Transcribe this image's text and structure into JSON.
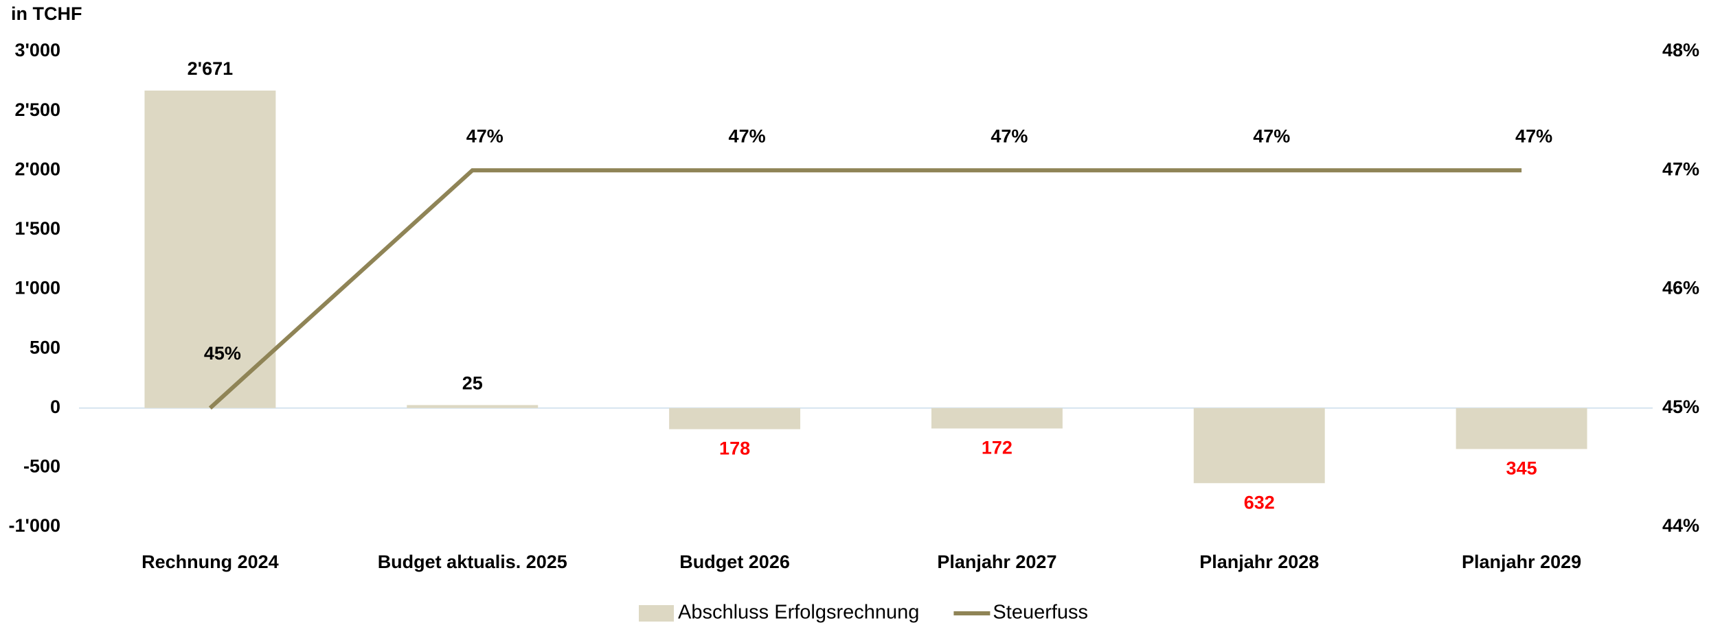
{
  "chart_data": {
    "type": "bar_line",
    "unit_label": "in TCHF",
    "categories": [
      "Rechnung 2024",
      "Budget aktualis. 2025",
      "Budget 2026",
      "Planjahr 2027",
      "Planjahr 2028",
      "Planjahr 2029"
    ],
    "series": [
      {
        "name": "Abschluss Erfolgsrechnung",
        "type": "bar",
        "color": "#ddd8c3",
        "negative_label_color": "#ff0000",
        "values": [
          2671,
          25,
          -178,
          -172,
          -632,
          -345
        ],
        "value_labels": [
          "2'671",
          "25",
          "178",
          "172",
          "632",
          "345"
        ]
      },
      {
        "name": "Steuerfuss",
        "type": "line",
        "axis": "y2",
        "color": "#8f8456",
        "values": [
          45,
          47,
          47,
          47,
          47,
          47
        ],
        "value_labels": [
          "45%",
          "47%",
          "47%",
          "47%",
          "47%",
          "47%"
        ]
      }
    ],
    "ylim": [
      -1000,
      3000
    ],
    "yticks": [
      {
        "value": 3000,
        "label": "3'000"
      },
      {
        "value": 2500,
        "label": "2'500"
      },
      {
        "value": 2000,
        "label": "2'000"
      },
      {
        "value": 1500,
        "label": "1'500"
      },
      {
        "value": 1000,
        "label": "1'000"
      },
      500,
      0,
      -500,
      {
        "value": -1000,
        "label": "-1'000"
      }
    ],
    "y2lim": [
      44,
      48
    ],
    "y2ticks": [
      {
        "value": 48,
        "label": "48%"
      },
      {
        "value": 47,
        "label": "47%"
      },
      {
        "value": 46,
        "label": "46%"
      },
      {
        "value": 45,
        "label": "45%"
      },
      {
        "value": 44,
        "label": "44%"
      }
    ],
    "legend": "bottom"
  }
}
